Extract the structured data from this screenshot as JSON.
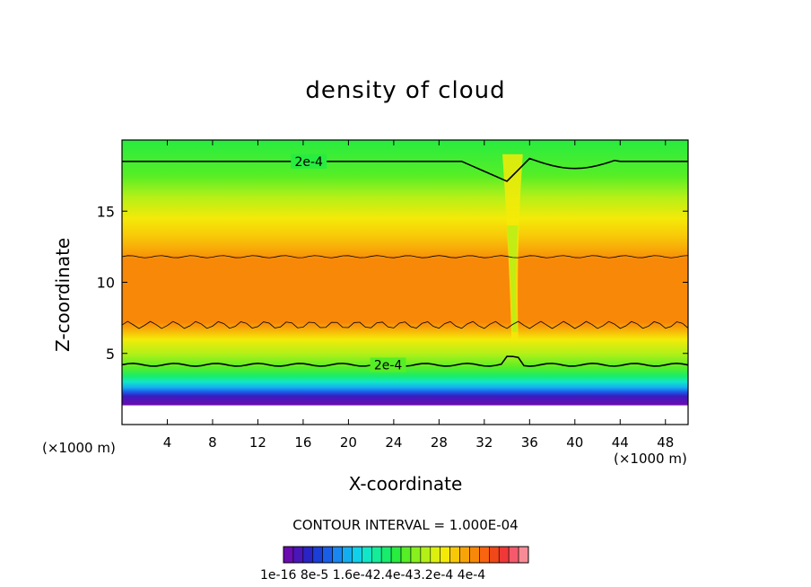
{
  "chart_data": {
    "type": "heatmap",
    "title": "density of cloud",
    "xlabel": "X-coordinate",
    "ylabel": "Z-coordinate",
    "x_unit": "(×1000 m)",
    "y_unit": "(×1000 m)",
    "xlim": [
      0,
      50
    ],
    "ylim": [
      0,
      20
    ],
    "x_ticks": [
      4,
      8,
      12,
      16,
      20,
      24,
      28,
      32,
      36,
      40,
      44,
      48
    ],
    "y_ticks": [
      5,
      10,
      15
    ],
    "contour_interval_text": "CONTOUR INTERVAL = 1.000E-04",
    "contour_labels": [
      "2e-4",
      "2e-4"
    ],
    "colorbar": {
      "labels": [
        "1e-16",
        "8e-5",
        "1.6e-4",
        "2.4e-4",
        "3.2e-4",
        "4e-4"
      ],
      "label_text": "1e-16 8e-5 1.6e-42.4e-43.2e-4 4e-4",
      "colors": [
        "#6a0cb0",
        "#4a16b8",
        "#2a24c4",
        "#1a3ed6",
        "#1a5ee8",
        "#1a86f0",
        "#14aef0",
        "#10d0ea",
        "#12e6c8",
        "#14ec9a",
        "#18ec6c",
        "#28ec40",
        "#56ee26",
        "#88f01e",
        "#b4f018",
        "#dcf010",
        "#f4ea08",
        "#f8c808",
        "#f8a408",
        "#f88808",
        "#f86410",
        "#f04818",
        "#f03838",
        "#f45a6c",
        "#f88c96"
      ]
    }
  }
}
